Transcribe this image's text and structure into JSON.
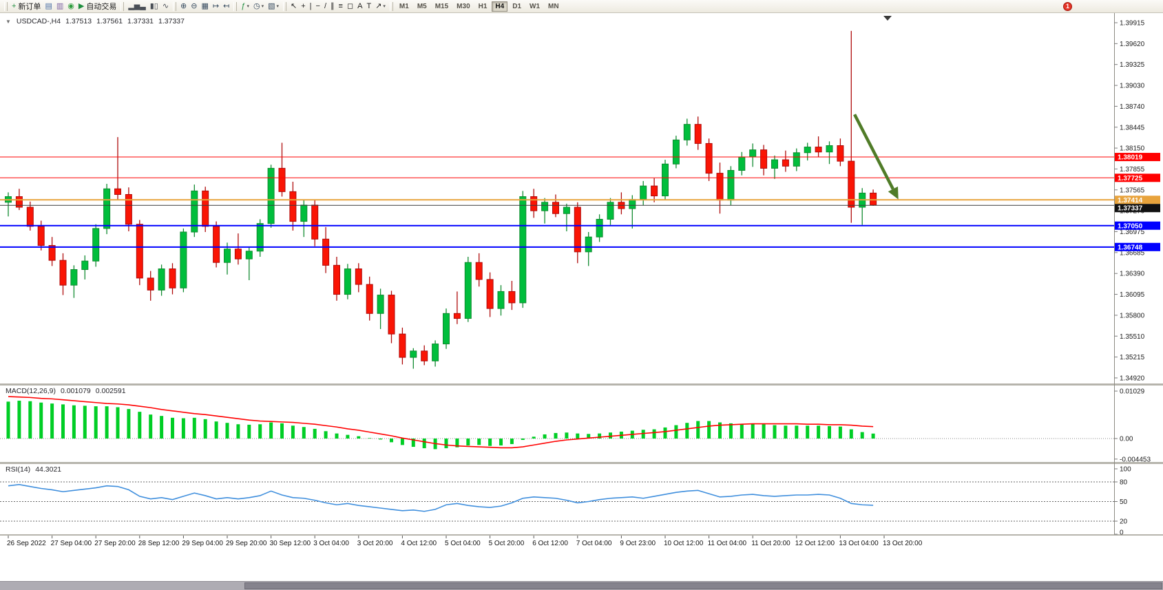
{
  "toolbar": {
    "notification_count": "1",
    "timeframes": [
      "M1",
      "M5",
      "M15",
      "M30",
      "H1",
      "H4",
      "D1",
      "W1",
      "MN"
    ],
    "active_timeframe": "H4",
    "groups": [
      {
        "name": "trade-group",
        "items": [
          {
            "name": "new-order-button",
            "glyph": "+",
            "glyph_color": "#1e8e3e",
            "label": "新订单"
          },
          {
            "name": "chart-window-button",
            "glyph": "▤",
            "glyph_color": "#4a6fa5"
          },
          {
            "name": "profiles-button",
            "glyph": "▥",
            "glyph_color": "#7a5fa0"
          },
          {
            "name": "community-button",
            "glyph": "◉",
            "glyph_color": "#2d9c3c"
          },
          {
            "name": "autotrade-button",
            "glyph": "▶",
            "glyph_color": "#1e8e3e",
            "label": "自动交易"
          }
        ]
      },
      {
        "name": "chart-type-group",
        "items": [
          {
            "name": "bar-chart-button",
            "glyph": "▂▅▃",
            "glyph_color": "#4a4f57"
          },
          {
            "name": "candlestick-chart-button",
            "glyph": "▮▯",
            "glyph_color": "#4a4f57"
          },
          {
            "name": "line-chart-button",
            "glyph": "∿",
            "glyph_color": "#4a4f57"
          }
        ]
      },
      {
        "name": "zoom-group",
        "items": [
          {
            "name": "zoom-in-button",
            "glyph": "⊕",
            "glyph_color": "#34495e"
          },
          {
            "name": "zoom-out-button",
            "glyph": "⊖",
            "glyph_color": "#34495e"
          },
          {
            "name": "tile-windows-button",
            "glyph": "▦",
            "glyph_color": "#34495e"
          },
          {
            "name": "auto-scroll-button",
            "glyph": "↦",
            "glyph_color": "#34495e"
          },
          {
            "name": "chart-shift-button",
            "glyph": "↤",
            "glyph_color": "#34495e"
          }
        ]
      },
      {
        "name": "setup-group",
        "items": [
          {
            "name": "indicators-button",
            "glyph": "ƒ",
            "glyph_color": "#1e8e3e",
            "dropdown": true
          },
          {
            "name": "periods-button",
            "glyph": "◷",
            "glyph_color": "#34495e",
            "dropdown": true
          },
          {
            "name": "templates-button",
            "glyph": "▧",
            "glyph_color": "#34495e",
            "dropdown": true
          }
        ]
      },
      {
        "name": "objects-group",
        "items": [
          {
            "name": "cursor-button",
            "glyph": "↖",
            "glyph_color": "#222222"
          },
          {
            "name": "crosshair-button",
            "glyph": "+",
            "glyph_color": "#222222"
          },
          {
            "name": "vertical-line-button",
            "glyph": "|",
            "glyph_color": "#222222"
          },
          {
            "name": "horizontal-line-button",
            "glyph": "−",
            "glyph_color": "#222222"
          },
          {
            "name": "trendline-button",
            "glyph": "/",
            "glyph_color": "#222222"
          },
          {
            "name": "channel-button",
            "glyph": "∥",
            "glyph_color": "#222222"
          },
          {
            "name": "fibonacci-button",
            "glyph": "≡",
            "glyph_color": "#222222"
          },
          {
            "name": "shapes-button",
            "glyph": "◻",
            "glyph_color": "#222222"
          },
          {
            "name": "text-button",
            "glyph": "A",
            "glyph_color": "#222222"
          },
          {
            "name": "text-label-button",
            "glyph": "T",
            "glyph_color": "#222222"
          },
          {
            "name": "arrows-button",
            "glyph": "↗",
            "glyph_color": "#222222",
            "dropdown": true
          }
        ]
      }
    ]
  },
  "main_pane": {
    "collapse_marker": "▼",
    "symbol": "USDCAD-,H4",
    "open": "1.37513",
    "high": "1.37561",
    "low": "1.37331",
    "close": "1.37337"
  },
  "macd_pane": {
    "title": "MACD(12,26,9)",
    "value_main": "0.001079",
    "value_signal": "0.002591"
  },
  "rsi_pane": {
    "title": "RSI(14)",
    "value": "44.3021"
  },
  "colors": {
    "up": "#00be3c",
    "up_dark": "#108a30",
    "down": "#fa1505",
    "down_dark": "#ae0a0a",
    "bid": "#3a3a3a",
    "macd_hist": "#00ce25",
    "macd_signal": "#ff0000",
    "rsi": "#3e8edd",
    "hline_red": "#ff0000",
    "hline_blue": "#0000ff",
    "hline_gold": "#e8a33c",
    "arrow": "#507c28"
  },
  "chart_data": {
    "type": "candlestick",
    "symbol": "USDCAD",
    "timeframe": "H4",
    "ylim": [
      1.3492,
      1.39915
    ],
    "y_ticks": [
      "1.39915",
      "1.39620",
      "1.39325",
      "1.39030",
      "1.38740",
      "1.38445",
      "1.38150",
      "1.37855",
      "1.37565",
      "1.37270",
      "1.36975",
      "1.36685",
      "1.36390",
      "1.36095",
      "1.35800",
      "1.35510",
      "1.35215",
      "1.34920"
    ],
    "label_every": 4,
    "x_labels": [
      "26 Sep 2022",
      "27 Sep 04:00",
      "27 Sep 20:00",
      "28 Sep 12:00",
      "29 Sep 04:00",
      "29 Sep 20:00",
      "30 Sep 12:00",
      "3 Oct 04:00",
      "3 Oct 20:00",
      "4 Oct 12:00",
      "5 Oct 04:00",
      "5 Oct 20:00",
      "6 Oct 12:00",
      "7 Oct 04:00",
      "9 Oct 23:00",
      "10 Oct 12:00",
      "11 Oct 04:00",
      "11 Oct 20:00",
      "12 Oct 12:00",
      "13 Oct 04:00",
      "13 Oct 20:00"
    ],
    "ohlc": [
      [
        1.3738,
        1.3752,
        1.3718,
        1.3746
      ],
      [
        1.3746,
        1.3757,
        1.3727,
        1.3731
      ],
      [
        1.3731,
        1.3739,
        1.3698,
        1.3704
      ],
      [
        1.3704,
        1.3712,
        1.367,
        1.3677
      ],
      [
        1.3677,
        1.3689,
        1.3648,
        1.3656
      ],
      [
        1.3656,
        1.3666,
        1.3607,
        1.3621
      ],
      [
        1.3621,
        1.3649,
        1.3603,
        1.3643
      ],
      [
        1.3643,
        1.3663,
        1.3629,
        1.3655
      ],
      [
        1.3655,
        1.3707,
        1.3647,
        1.3701
      ],
      [
        1.3701,
        1.3764,
        1.3693,
        1.3757
      ],
      [
        1.3757,
        1.383,
        1.3741,
        1.3749
      ],
      [
        1.3749,
        1.3759,
        1.3697,
        1.3707
      ],
      [
        1.3707,
        1.3713,
        1.3621,
        1.3631
      ],
      [
        1.3631,
        1.3641,
        1.3599,
        1.3614
      ],
      [
        1.3614,
        1.365,
        1.3606,
        1.3644
      ],
      [
        1.3644,
        1.3652,
        1.3608,
        1.3617
      ],
      [
        1.3617,
        1.3701,
        1.3611,
        1.3696
      ],
      [
        1.3696,
        1.3763,
        1.3689,
        1.3754
      ],
      [
        1.3754,
        1.376,
        1.3696,
        1.3704
      ],
      [
        1.3704,
        1.3711,
        1.3646,
        1.3653
      ],
      [
        1.3653,
        1.3681,
        1.3636,
        1.3672
      ],
      [
        1.3672,
        1.3694,
        1.365,
        1.3658
      ],
      [
        1.3658,
        1.3674,
        1.3628,
        1.3669
      ],
      [
        1.3669,
        1.3714,
        1.3661,
        1.3708
      ],
      [
        1.3708,
        1.3791,
        1.3702,
        1.3786
      ],
      [
        1.3786,
        1.3822,
        1.3746,
        1.3753
      ],
      [
        1.3753,
        1.3767,
        1.3698,
        1.3711
      ],
      [
        1.3711,
        1.3741,
        1.3689,
        1.3734
      ],
      [
        1.3734,
        1.3742,
        1.3676,
        1.3686
      ],
      [
        1.3686,
        1.3703,
        1.3638,
        1.3649
      ],
      [
        1.3649,
        1.3661,
        1.3599,
        1.3608
      ],
      [
        1.3608,
        1.3651,
        1.3601,
        1.3644
      ],
      [
        1.3644,
        1.3652,
        1.3611,
        1.3622
      ],
      [
        1.3622,
        1.3633,
        1.3571,
        1.3581
      ],
      [
        1.3581,
        1.3616,
        1.3559,
        1.3607
      ],
      [
        1.3607,
        1.3613,
        1.3539,
        1.3552
      ],
      [
        1.3552,
        1.3561,
        1.3509,
        1.3519
      ],
      [
        1.3519,
        1.3532,
        1.3503,
        1.3528
      ],
      [
        1.3528,
        1.3536,
        1.3508,
        1.3514
      ],
      [
        1.3514,
        1.3543,
        1.3506,
        1.3538
      ],
      [
        1.3538,
        1.3588,
        1.3531,
        1.3581
      ],
      [
        1.3581,
        1.3612,
        1.3566,
        1.3574
      ],
      [
        1.3574,
        1.3661,
        1.3569,
        1.3653
      ],
      [
        1.3653,
        1.3666,
        1.3619,
        1.3629
      ],
      [
        1.3629,
        1.3639,
        1.3576,
        1.3588
      ],
      [
        1.3588,
        1.3621,
        1.3578,
        1.3612
      ],
      [
        1.3612,
        1.3627,
        1.3586,
        1.3596
      ],
      [
        1.3596,
        1.3754,
        1.3589,
        1.3746
      ],
      [
        1.3746,
        1.3757,
        1.3716,
        1.3726
      ],
      [
        1.3726,
        1.3744,
        1.3708,
        1.3738
      ],
      [
        1.3738,
        1.3749,
        1.3717,
        1.3722
      ],
      [
        1.3722,
        1.3736,
        1.3697,
        1.3731
      ],
      [
        1.3731,
        1.3738,
        1.3652,
        1.3668
      ],
      [
        1.3668,
        1.3696,
        1.3648,
        1.3689
      ],
      [
        1.3689,
        1.3721,
        1.3682,
        1.3714
      ],
      [
        1.3714,
        1.3744,
        1.3706,
        1.3738
      ],
      [
        1.3738,
        1.3752,
        1.3721,
        1.3729
      ],
      [
        1.3729,
        1.3748,
        1.3701,
        1.3742
      ],
      [
        1.3742,
        1.3768,
        1.3734,
        1.3761
      ],
      [
        1.3761,
        1.3772,
        1.3738,
        1.3747
      ],
      [
        1.3747,
        1.3798,
        1.3741,
        1.3792
      ],
      [
        1.3792,
        1.3832,
        1.3786,
        1.3826
      ],
      [
        1.3826,
        1.3856,
        1.3818,
        1.3848
      ],
      [
        1.3848,
        1.3859,
        1.3812,
        1.3821
      ],
      [
        1.3821,
        1.3828,
        1.3768,
        1.3779
      ],
      [
        1.3779,
        1.3794,
        1.3722,
        1.3741
      ],
      [
        1.3741,
        1.3789,
        1.3734,
        1.3783
      ],
      [
        1.3783,
        1.3809,
        1.3776,
        1.3802
      ],
      [
        1.3802,
        1.3821,
        1.3788,
        1.3812
      ],
      [
        1.3812,
        1.3819,
        1.3776,
        1.3786
      ],
      [
        1.3786,
        1.3804,
        1.3771,
        1.3798
      ],
      [
        1.3798,
        1.3811,
        1.3781,
        1.3789
      ],
      [
        1.3789,
        1.3814,
        1.3782,
        1.3808
      ],
      [
        1.3808,
        1.3822,
        1.3797,
        1.3816
      ],
      [
        1.3816,
        1.3831,
        1.3802,
        1.3809
      ],
      [
        1.3809,
        1.3824,
        1.3792,
        1.3818
      ],
      [
        1.3818,
        1.3828,
        1.3789,
        1.3796
      ],
      [
        1.3796,
        1.398,
        1.3709,
        1.3731
      ],
      [
        1.3731,
        1.3758,
        1.3706,
        1.3751
      ],
      [
        1.3751,
        1.3756,
        1.3733,
        1.3734
      ]
    ],
    "hlines": [
      {
        "price": 1.38019,
        "label": "1.38019",
        "color": "#ff0000",
        "width": 1
      },
      {
        "price": 1.37725,
        "label": "1.37725",
        "color": "#ff0000",
        "width": 1
      },
      {
        "price": 1.37414,
        "label": "1.37414",
        "color": "#e8a33c",
        "width": 2
      },
      {
        "price": 1.3705,
        "label": "1.37050",
        "color": "#0000ff",
        "width": 2
      },
      {
        "price": 1.36748,
        "label": "1.36748",
        "color": "#0000ff",
        "width": 2
      }
    ],
    "bid": {
      "price": 1.37337,
      "label": "1.37337"
    },
    "arrow": {
      "from_index": 77.3,
      "from_price": 1.3862,
      "to_index": 81.3,
      "to_price": 1.3742,
      "color": "#507c28"
    },
    "indicators": [
      {
        "type": "macd",
        "params": "12,26,9",
        "ticks": [
          [
            "0.01029",
            0.01029
          ],
          [
            "0.00",
            0
          ],
          [
            "-0.004453",
            -0.004453
          ]
        ],
        "histogram": [
          0.008,
          0.0082,
          0.0081,
          0.0078,
          0.0076,
          0.0074,
          0.0072,
          0.0071,
          0.007,
          0.007,
          0.0068,
          0.0064,
          0.0058,
          0.0052,
          0.0049,
          0.0045,
          0.0044,
          0.0045,
          0.0042,
          0.0037,
          0.0034,
          0.0031,
          0.003,
          0.0031,
          0.0035,
          0.0033,
          0.0028,
          0.0025,
          0.0021,
          0.0016,
          0.0011,
          0.0008,
          0.0005,
          0.0001,
          -0.0002,
          -0.0008,
          -0.0014,
          -0.0018,
          -0.0021,
          -0.0023,
          -0.0021,
          -0.0019,
          -0.0015,
          -0.0014,
          -0.0016,
          -0.0015,
          -0.0012,
          -0.0003,
          0.0004,
          0.0009,
          0.0012,
          0.0013,
          0.0011,
          0.001,
          0.0011,
          0.0013,
          0.0015,
          0.0017,
          0.0019,
          0.002,
          0.0024,
          0.0029,
          0.0034,
          0.0038,
          0.0038,
          0.0035,
          0.0033,
          0.0032,
          0.0032,
          0.0031,
          0.0029,
          0.0028,
          0.0028,
          0.0028,
          0.0028,
          0.0027,
          0.0026,
          0.002,
          0.0014,
          0.001079
        ],
        "signal": [
          0.0091,
          0.009,
          0.0089,
          0.0087,
          0.0086,
          0.0084,
          0.0082,
          0.008,
          0.0078,
          0.0076,
          0.0075,
          0.0073,
          0.007,
          0.0067,
          0.0063,
          0.006,
          0.0057,
          0.0054,
          0.0052,
          0.0049,
          0.0046,
          0.0043,
          0.004,
          0.0038,
          0.0037,
          0.0036,
          0.0035,
          0.0033,
          0.0031,
          0.0028,
          0.0025,
          0.0021,
          0.0018,
          0.0014,
          0.001,
          0.0006,
          0.0001,
          -0.0003,
          -0.0007,
          -0.0011,
          -0.0014,
          -0.0016,
          -0.0017,
          -0.0018,
          -0.0019,
          -0.002,
          -0.002,
          -0.0018,
          -0.0014,
          -0.001,
          -0.0006,
          -0.0003,
          -0.0001,
          0.0001,
          0.0003,
          0.0005,
          0.0007,
          0.0009,
          0.0011,
          0.0013,
          0.0015,
          0.0018,
          0.0021,
          0.0024,
          0.0027,
          0.0029,
          0.003,
          0.0031,
          0.0032,
          0.0032,
          0.0032,
          0.0032,
          0.0032,
          0.0031,
          0.0031,
          0.003,
          0.003,
          0.0029,
          0.0027,
          0.002591
        ]
      },
      {
        "type": "rsi",
        "params": "14",
        "scale": [
          "100",
          "80",
          "50",
          "20",
          "0"
        ],
        "levels": [
          80,
          50,
          20
        ],
        "values": [
          74,
          76,
          73,
          70,
          68,
          65,
          67,
          69,
          71,
          74,
          73,
          68,
          58,
          54,
          56,
          53,
          58,
          63,
          59,
          54,
          56,
          54,
          56,
          59,
          66,
          60,
          56,
          55,
          52,
          48,
          45,
          47,
          44,
          42,
          40,
          38,
          36,
          37,
          35,
          38,
          45,
          47,
          44,
          42,
          41,
          43,
          48,
          55,
          57,
          56,
          55,
          52,
          48,
          50,
          53,
          55,
          56,
          57,
          55,
          58,
          61,
          64,
          66,
          67,
          62,
          57,
          58,
          60,
          61,
          59,
          58,
          59,
          60,
          60,
          61,
          60,
          55,
          47,
          45,
          44.3
        ]
      }
    ]
  }
}
